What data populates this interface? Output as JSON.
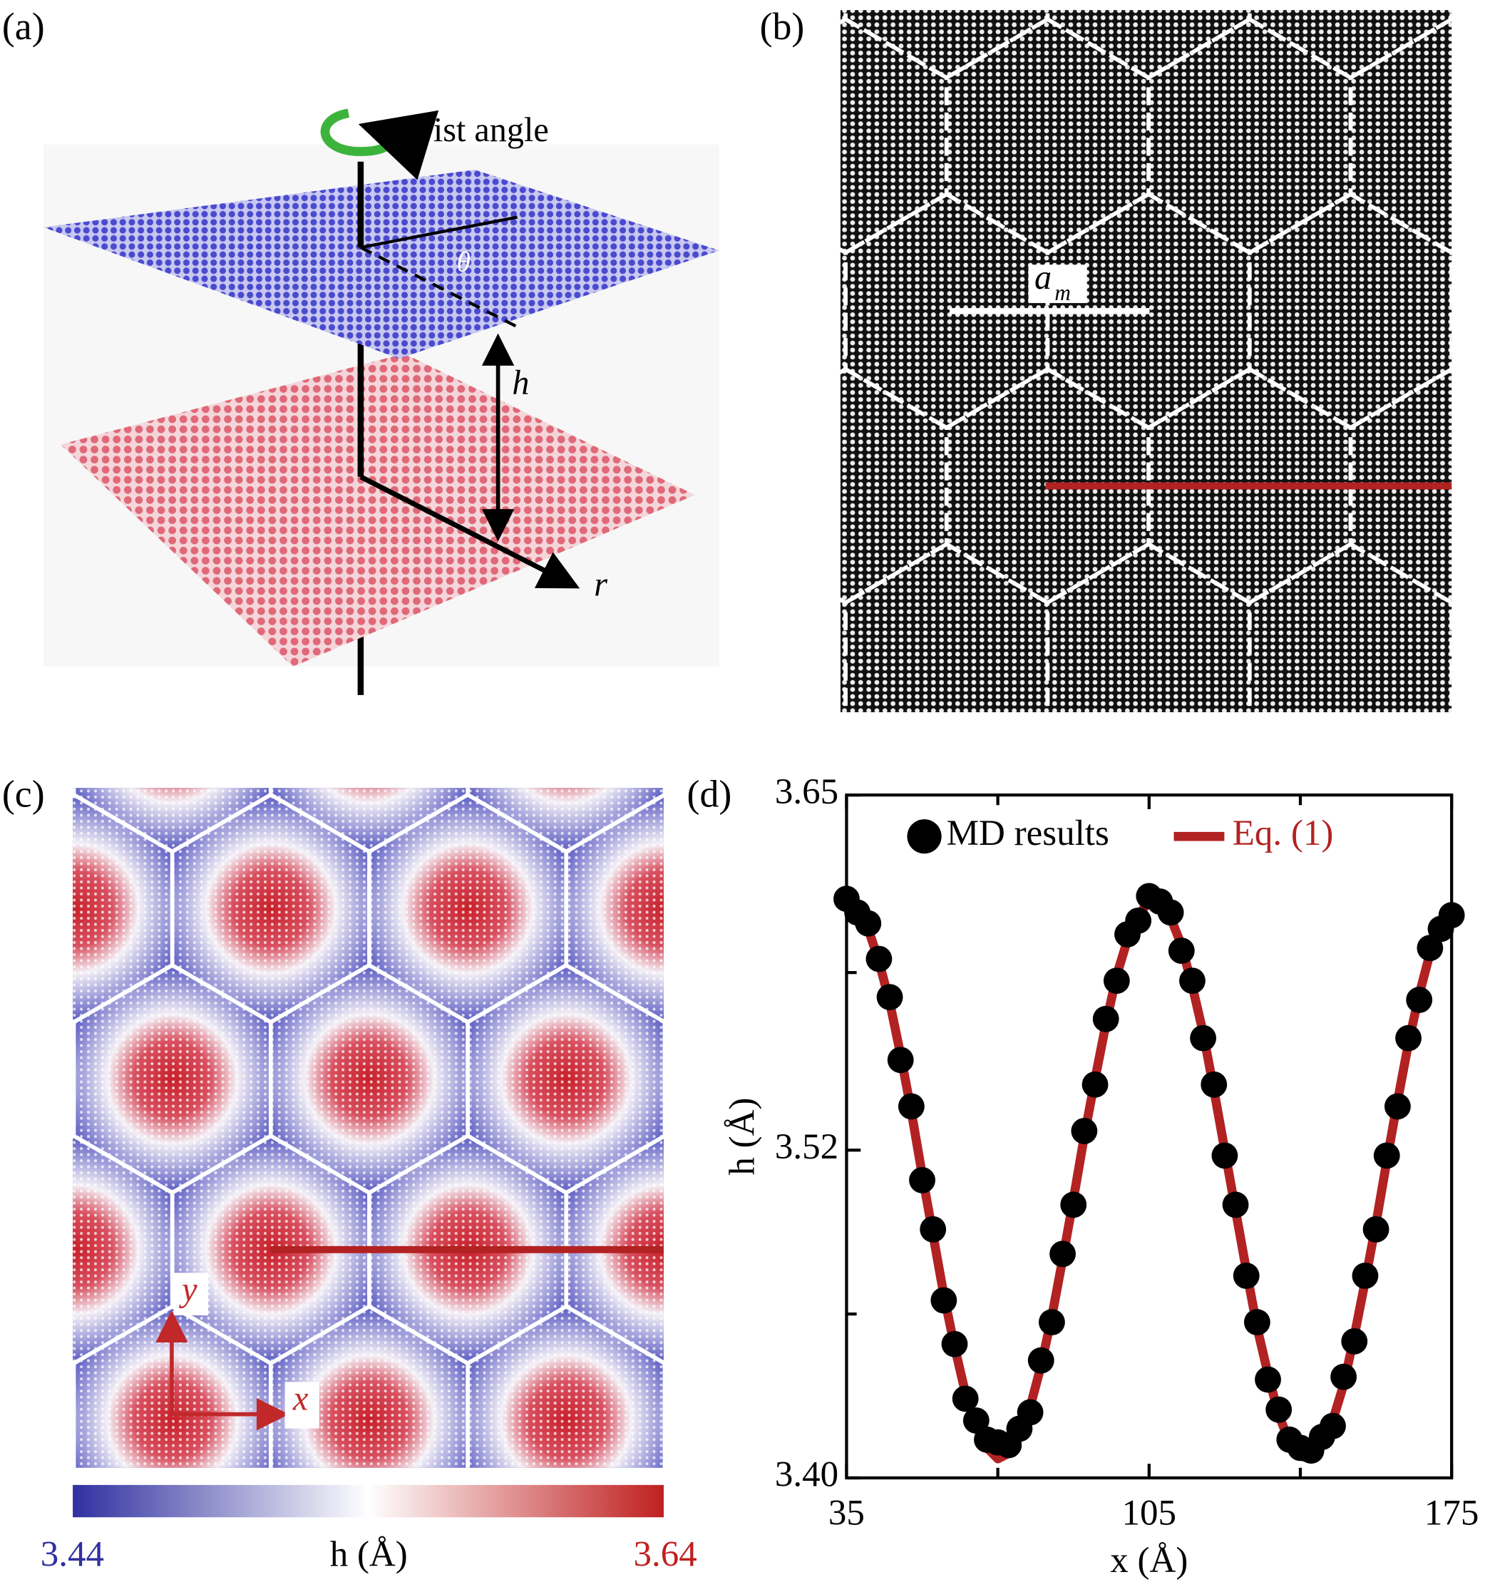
{
  "panels": {
    "a": {
      "label": "(a)",
      "twist_label": "twist angle",
      "theta": "θ",
      "h": "h",
      "r": "r"
    },
    "b": {
      "label": "(b)",
      "period": "a",
      "period_sub": "m"
    },
    "c": {
      "label": "(c)",
      "x_axis": "x",
      "y_axis": "y",
      "colorbar": {
        "min": 3.44,
        "max": 3.64,
        "label": "h (Å)"
      }
    },
    "d": {
      "label": "(d)"
    }
  },
  "chart_data": {
    "type": "scatter",
    "x_label": "x (Å)",
    "y_label": "h (Å)",
    "xlim": [
      35,
      175
    ],
    "xticks": [
      35,
      105,
      175
    ],
    "xminor": [
      70,
      140
    ],
    "ylim": [
      3.4,
      3.65
    ],
    "yticks": [
      {
        "value": 3.4,
        "label": "3.40"
      },
      3.52,
      3.65
    ],
    "yminor": [
      3.46,
      3.585
    ],
    "x": [
      35,
      37.5,
      40,
      42.5,
      45,
      47.5,
      50,
      52.5,
      55,
      57.5,
      60,
      62.5,
      65,
      67.5,
      70,
      72.5,
      75,
      77.5,
      80,
      82.5,
      85,
      87.5,
      90,
      92.5,
      95,
      97.5,
      100,
      102.5,
      105,
      107.5,
      110,
      112.5,
      115,
      117.5,
      120,
      122.5,
      125,
      127.5,
      130,
      132.5,
      135,
      137.5,
      140,
      142.5,
      145,
      147.5,
      150,
      152.5,
      155,
      157.5,
      160,
      162.5,
      165,
      167.5,
      170,
      172.5,
      175
    ],
    "series": [
      {
        "name": "MD results",
        "color": "#000000",
        "marker": "circle",
        "values": [
          3.612,
          3.607,
          3.603,
          3.59,
          3.576,
          3.553,
          3.536,
          3.509,
          3.491,
          3.465,
          3.449,
          3.429,
          3.421,
          3.414,
          3.413,
          3.412,
          3.418,
          3.424,
          3.443,
          3.457,
          3.482,
          3.5,
          3.527,
          3.544,
          3.568,
          3.582,
          3.599,
          3.604,
          3.613,
          3.611,
          3.607,
          3.593,
          3.582,
          3.561,
          3.544,
          3.518,
          3.5,
          3.474,
          3.457,
          3.436,
          3.425,
          3.414,
          3.411,
          3.41,
          3.415,
          3.419,
          3.437,
          3.45,
          3.474,
          3.491,
          3.518,
          3.536,
          3.561,
          3.575,
          3.594,
          3.601,
          3.606
        ]
      },
      {
        "name": "Eq. (1)",
        "color": "#b22222",
        "marker": "line",
        "values": [
          3.611,
          3.608,
          3.601,
          3.589,
          3.574,
          3.555,
          3.534,
          3.511,
          3.489,
          3.467,
          3.448,
          3.431,
          3.419,
          3.411,
          3.407,
          3.409,
          3.415,
          3.426,
          3.441,
          3.459,
          3.48,
          3.502,
          3.525,
          3.546,
          3.566,
          3.584,
          3.597,
          3.606,
          3.611,
          3.61,
          3.605,
          3.595,
          3.58,
          3.563,
          3.542,
          3.52,
          3.498,
          3.476,
          3.455,
          3.438,
          3.423,
          3.413,
          3.408,
          3.407,
          3.412,
          3.421,
          3.434,
          3.452,
          3.472,
          3.493,
          3.516,
          3.538,
          3.559,
          3.577,
          3.592,
          3.603,
          3.609
        ]
      }
    ]
  }
}
